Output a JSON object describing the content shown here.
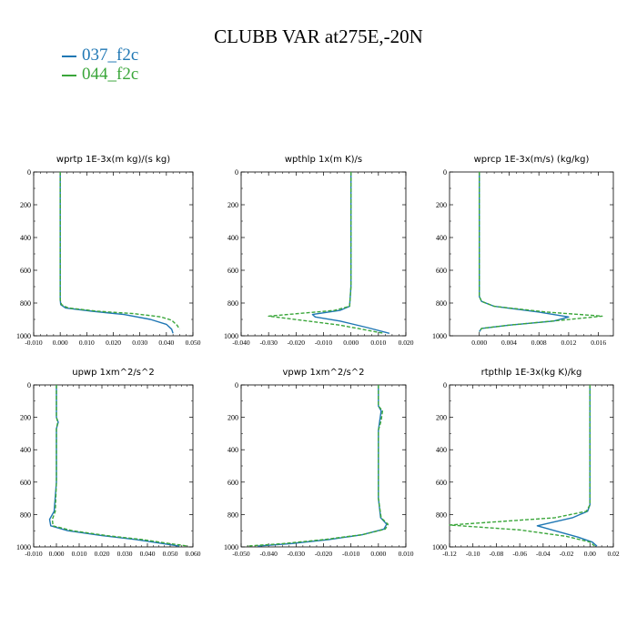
{
  "title": "CLUBB VAR at275E,-20N",
  "legend": [
    {
      "name": "037_f2c",
      "color": "#1f77b4"
    },
    {
      "name": "044_f2c",
      "color": "#3aa63a"
    }
  ],
  "chart_data": [
    {
      "type": "line",
      "title": "wprtp  1E-3x(m kg)/(s kg)",
      "xlim": [
        -0.01,
        0.05
      ],
      "xticks": [
        "-0.010",
        "0.000",
        "0.010",
        "0.020",
        "0.030",
        "0.040",
        "0.050"
      ],
      "ylim": [
        1000,
        0
      ],
      "yticks": [
        "0",
        "200",
        "400",
        "600",
        "800",
        "1000"
      ],
      "series": [
        {
          "name": "037_f2c",
          "x": [
            0.0,
            0.0,
            0.0,
            0.0,
            0.0002,
            0.002,
            0.012,
            0.024,
            0.034,
            0.04,
            0.042,
            0.0425
          ],
          "y": [
            0,
            200,
            500,
            780,
            810,
            830,
            850,
            870,
            900,
            930,
            960,
            985
          ]
        },
        {
          "name": "044_f2c",
          "x": [
            0.0,
            0.0,
            0.0,
            0.0,
            0.0005,
            0.003,
            0.014,
            0.028,
            0.038,
            0.042,
            0.044,
            0.045
          ],
          "y": [
            0,
            200,
            500,
            780,
            810,
            830,
            850,
            865,
            885,
            905,
            935,
            960
          ]
        }
      ]
    },
    {
      "type": "line",
      "title": "wpthlp  1x(m K)/s",
      "xlim": [
        -0.04,
        0.02
      ],
      "xticks": [
        "-0.040",
        "-0.030",
        "-0.020",
        "-0.010",
        "0.000",
        "0.010",
        "0.020"
      ],
      "ylim": [
        1000,
        0
      ],
      "yticks": [
        "0",
        "200",
        "400",
        "600",
        "800",
        "1000"
      ],
      "series": [
        {
          "name": "037_f2c",
          "x": [
            0.0,
            0.0,
            0.0,
            -0.0005,
            -0.004,
            -0.014,
            -0.013,
            -0.004,
            0.006,
            0.014
          ],
          "y": [
            0,
            300,
            700,
            820,
            845,
            870,
            885,
            910,
            950,
            985
          ]
        },
        {
          "name": "044_f2c",
          "x": [
            0.0,
            0.0,
            0.0,
            -0.0005,
            -0.006,
            -0.03,
            -0.018,
            -0.004,
            0.004,
            0.012
          ],
          "y": [
            0,
            300,
            700,
            820,
            845,
            880,
            905,
            935,
            960,
            985
          ]
        }
      ]
    },
    {
      "type": "line",
      "title": "wprcp  1E-3x(m/s) (kg/kg)",
      "xlim": [
        -0.004,
        0.018
      ],
      "xticks": [
        "0.000",
        "0.004",
        "0.008",
        "0.012",
        "0.016"
      ],
      "ylim": [
        1000,
        0
      ],
      "yticks": [
        "0",
        "200",
        "400",
        "600",
        "800",
        "1000"
      ],
      "series": [
        {
          "name": "037_f2c",
          "x": [
            0.0,
            0.0,
            0.0,
            0.0003,
            0.002,
            0.008,
            0.012,
            0.01,
            0.004,
            0.0003,
            0.0
          ],
          "y": [
            0,
            500,
            760,
            790,
            820,
            855,
            885,
            910,
            935,
            955,
            975
          ]
        },
        {
          "name": "044_f2c",
          "x": [
            0.0,
            0.0,
            0.0,
            0.0003,
            0.002,
            0.009,
            0.0165,
            0.011,
            0.004,
            0.0003,
            0.0
          ],
          "y": [
            0,
            500,
            760,
            790,
            820,
            855,
            880,
            905,
            935,
            955,
            975
          ]
        }
      ]
    },
    {
      "type": "line",
      "title": "upwp   1xm^2/s^2",
      "xlim": [
        -0.01,
        0.06
      ],
      "xticks": [
        "-0.010",
        "0.000",
        "0.010",
        "0.020",
        "0.030",
        "0.040",
        "0.050",
        "0.060"
      ],
      "ylim": [
        1000,
        0
      ],
      "yticks": [
        "0",
        "200",
        "400",
        "600",
        "800",
        "1000"
      ],
      "series": [
        {
          "name": "037_f2c",
          "x": [
            0.0,
            0.0,
            0.0008,
            0.0,
            0.0,
            -0.001,
            -0.003,
            -0.0025,
            0.005,
            0.02,
            0.035,
            0.047,
            0.054
          ],
          "y": [
            0,
            200,
            230,
            270,
            600,
            780,
            830,
            870,
            900,
            930,
            955,
            980,
            995
          ]
        },
        {
          "name": "044_f2c",
          "x": [
            0.0,
            0.0,
            0.0006,
            0.0,
            0.0,
            -0.0005,
            -0.0018,
            -0.0015,
            0.007,
            0.022,
            0.038,
            0.05,
            0.058
          ],
          "y": [
            0,
            200,
            230,
            270,
            600,
            780,
            830,
            870,
            900,
            930,
            955,
            980,
            995
          ]
        }
      ]
    },
    {
      "type": "line",
      "title": "vpwp   1xm^2/s^2",
      "xlim": [
        -0.05,
        0.01
      ],
      "xticks": [
        "-0.050",
        "-0.040",
        "-0.030",
        "-0.020",
        "-0.010",
        "0.000",
        "0.010"
      ],
      "ylim": [
        1000,
        0
      ],
      "yticks": [
        "0",
        "200",
        "400",
        "600",
        "800",
        "1000"
      ],
      "series": [
        {
          "name": "037_f2c",
          "x": [
            0.0,
            0.0,
            0.001,
            0.0005,
            0.0,
            0.0,
            0.0008,
            0.003,
            0.002,
            -0.006,
            -0.018,
            -0.032,
            -0.044
          ],
          "y": [
            0,
            130,
            160,
            220,
            280,
            700,
            820,
            860,
            890,
            925,
            955,
            980,
            995
          ]
        },
        {
          "name": "044_f2c",
          "x": [
            0.0,
            0.0,
            0.0015,
            0.001,
            0.0,
            0.0,
            0.001,
            0.0035,
            0.0025,
            -0.006,
            -0.02,
            -0.035,
            -0.048
          ],
          "y": [
            0,
            130,
            160,
            220,
            280,
            700,
            820,
            860,
            890,
            925,
            955,
            980,
            995
          ]
        }
      ]
    },
    {
      "type": "line",
      "title": "rtpthlp   1E-3x(kg K)/kg",
      "xlim": [
        -0.12,
        0.02
      ],
      "xticks": [
        "-0.12",
        "-0.10",
        "-0.08",
        "-0.06",
        "-0.04",
        "-0.02",
        "0.00",
        "0.02"
      ],
      "ylim": [
        1000,
        0
      ],
      "yticks": [
        "0",
        "200",
        "400",
        "600",
        "800",
        "1000"
      ],
      "series": [
        {
          "name": "037_f2c",
          "x": [
            0.0,
            0.0,
            0.0,
            -0.002,
            -0.015,
            -0.045,
            -0.03,
            -0.01,
            0.002,
            0.006
          ],
          "y": [
            0,
            500,
            740,
            780,
            820,
            870,
            900,
            940,
            970,
            995
          ]
        },
        {
          "name": "044_f2c",
          "x": [
            0.0,
            0.0,
            0.0,
            -0.003,
            -0.03,
            -0.12,
            -0.06,
            -0.02,
            0.0,
            0.004
          ],
          "y": [
            0,
            500,
            740,
            780,
            820,
            865,
            895,
            935,
            970,
            995
          ]
        }
      ]
    }
  ]
}
